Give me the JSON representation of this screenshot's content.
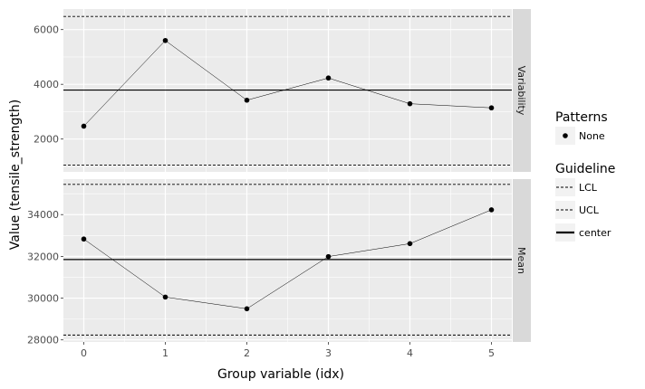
{
  "chart_data": {
    "type": "line",
    "xlabel": "Group variable (idx)",
    "ylabel": "Value (tensile_strength)",
    "x": [
      0,
      1,
      2,
      3,
      4,
      5
    ],
    "x_ticks": [
      "0",
      "1",
      "2",
      "3",
      "4",
      "5"
    ],
    "xlim": [
      -0.25,
      5.25
    ],
    "panels": [
      {
        "strip": "Variability",
        "values": [
          2470,
          5600,
          3420,
          4230,
          3290,
          3140
        ],
        "center": 3790,
        "ucl": 6480,
        "lcl": 1050,
        "ylim": [
          800,
          6750
        ],
        "y_ticks": [
          2000,
          4000,
          6000
        ],
        "y_tick_labels": [
          "2000",
          "4000",
          "6000"
        ]
      },
      {
        "strip": "Mean",
        "values": [
          32830,
          30050,
          29490,
          31990,
          32610,
          34230
        ],
        "center": 31850,
        "ucl": 35450,
        "lcl": 28230,
        "ylim": [
          27900,
          35700
        ],
        "y_ticks": [
          28000,
          30000,
          32000,
          34000
        ],
        "y_tick_labels": [
          "28000",
          "30000",
          "32000",
          "34000"
        ]
      }
    ],
    "grid": true,
    "legend": {
      "placement": "right",
      "patterns_title": "Patterns",
      "patterns_items": [
        "None"
      ],
      "guideline_title": "Guideline",
      "guideline_items": [
        {
          "label": "LCL",
          "style": "dashed"
        },
        {
          "label": "UCL",
          "style": "dashed"
        },
        {
          "label": "center",
          "style": "solid"
        }
      ]
    },
    "colors": {
      "panel_bg": "#ebebeb",
      "grid": "#ffffff",
      "strip_bg": "#d9d9d9",
      "line": "#000000",
      "point": "#000000"
    }
  }
}
